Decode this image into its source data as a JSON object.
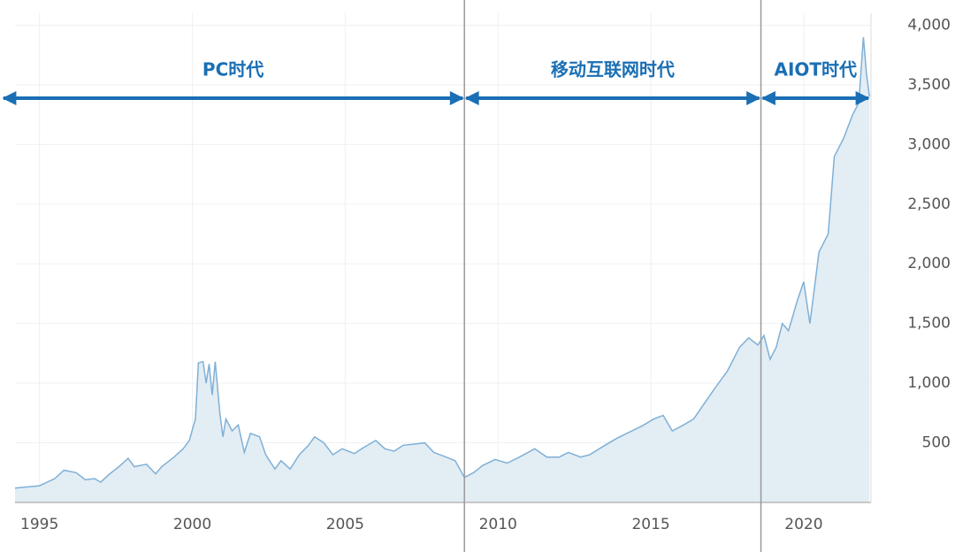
{
  "chart_data": {
    "type": "area",
    "x": [
      1994.2,
      1995.0,
      1995.5,
      1995.8,
      1996.2,
      1996.5,
      1996.8,
      1997.0,
      1997.3,
      1997.6,
      1997.9,
      1998.1,
      1998.5,
      1998.8,
      1999.0,
      1999.4,
      1999.7,
      1999.9,
      2000.1,
      2000.2,
      2000.35,
      2000.45,
      2000.55,
      2000.65,
      2000.75,
      2000.9,
      2001.0,
      2001.1,
      2001.3,
      2001.5,
      2001.7,
      2001.9,
      2002.2,
      2002.4,
      2002.7,
      2002.9,
      2003.2,
      2003.5,
      2003.8,
      2004.0,
      2004.3,
      2004.6,
      2004.9,
      2005.3,
      2005.6,
      2006.0,
      2006.3,
      2006.6,
      2006.9,
      2007.3,
      2007.6,
      2007.9,
      2008.3,
      2008.6,
      2008.9,
      2009.2,
      2009.5,
      2009.9,
      2010.3,
      2010.7,
      2011.2,
      2011.6,
      2012.0,
      2012.3,
      2012.7,
      2013.0,
      2013.5,
      2013.9,
      2014.3,
      2014.7,
      2015.1,
      2015.4,
      2015.7,
      2016.0,
      2016.4,
      2016.8,
      2017.1,
      2017.5,
      2017.9,
      2018.2,
      2018.5,
      2018.7,
      2018.9,
      2019.1,
      2019.3,
      2019.5,
      2019.8,
      2020.0,
      2020.2,
      2020.5,
      2020.8,
      2021.0,
      2021.3,
      2021.6,
      2021.8,
      2021.95,
      2022.05,
      2022.15
    ],
    "series": [
      {
        "color": "#7fb0d6",
        "fill": "#e3edf4",
        "values": [
          120,
          140,
          200,
          270,
          250,
          190,
          200,
          170,
          240,
          300,
          370,
          300,
          320,
          240,
          300,
          380,
          450,
          520,
          700,
          1170,
          1180,
          1000,
          1160,
          900,
          1180,
          750,
          550,
          700,
          600,
          650,
          420,
          580,
          550,
          400,
          280,
          350,
          280,
          400,
          480,
          550,
          500,
          400,
          450,
          410,
          460,
          520,
          450,
          430,
          480,
          490,
          500,
          420,
          380,
          350,
          210,
          250,
          310,
          360,
          330,
          380,
          450,
          380,
          380,
          420,
          380,
          400,
          480,
          540,
          590,
          640,
          700,
          730,
          600,
          640,
          700,
          850,
          960,
          1100,
          1300,
          1380,
          1320,
          1400,
          1200,
          1300,
          1500,
          1440,
          1700,
          1850,
          1500,
          2100,
          2250,
          2900,
          3050,
          3250,
          3350,
          3900,
          3600,
          3400
        ]
      }
    ],
    "xlim": [
      1994.2,
      2022.2
    ],
    "ylim": [
      0,
      4100
    ],
    "xticks": [
      1995,
      2000,
      2005,
      2010,
      2015,
      2020
    ],
    "yticks": [
      500,
      {
        "value": 1000,
        "label": "1,000"
      },
      {
        "value": 1500,
        "label": "1,500"
      },
      {
        "value": 2000,
        "label": "2,000"
      },
      {
        "value": 2500,
        "label": "2,500"
      },
      {
        "value": 3000,
        "label": "3,000"
      },
      {
        "value": 3500,
        "label": "3,500"
      },
      {
        "value": 4000,
        "label": "4,000"
      }
    ],
    "grid": true,
    "vlines": [
      2008.9,
      2018.6
    ],
    "eras": [
      "PC时代",
      "移动互联网时代",
      "AIOT时代"
    ],
    "era_color": "#1a6fb5"
  }
}
